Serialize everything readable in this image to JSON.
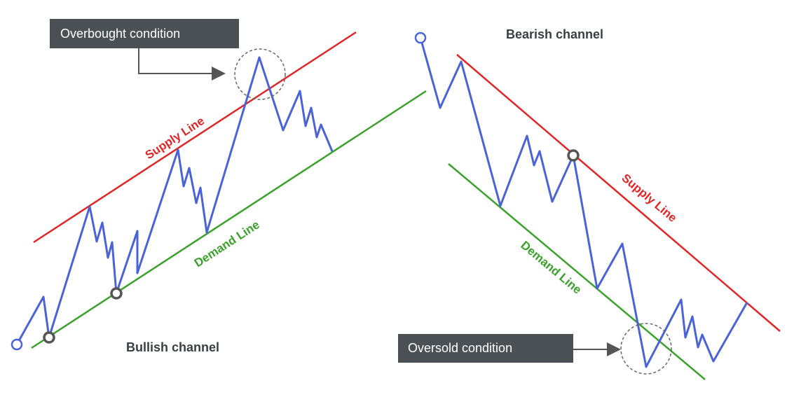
{
  "colors": {
    "supply": "#e02626",
    "demand": "#3aa12a",
    "price": "#4a63d6",
    "box": "#4b5055",
    "title": "#3a3f45",
    "marker": "#555555"
  },
  "bullish": {
    "title": "Bullish channel",
    "supply_label": "Supply Line",
    "demand_label": "Demand Line",
    "callout": "Overbought condition"
  },
  "bearish": {
    "title": "Bearish channel",
    "supply_label": "Supply Line",
    "demand_label": "Demand Line",
    "callout": "Oversold condition"
  }
}
